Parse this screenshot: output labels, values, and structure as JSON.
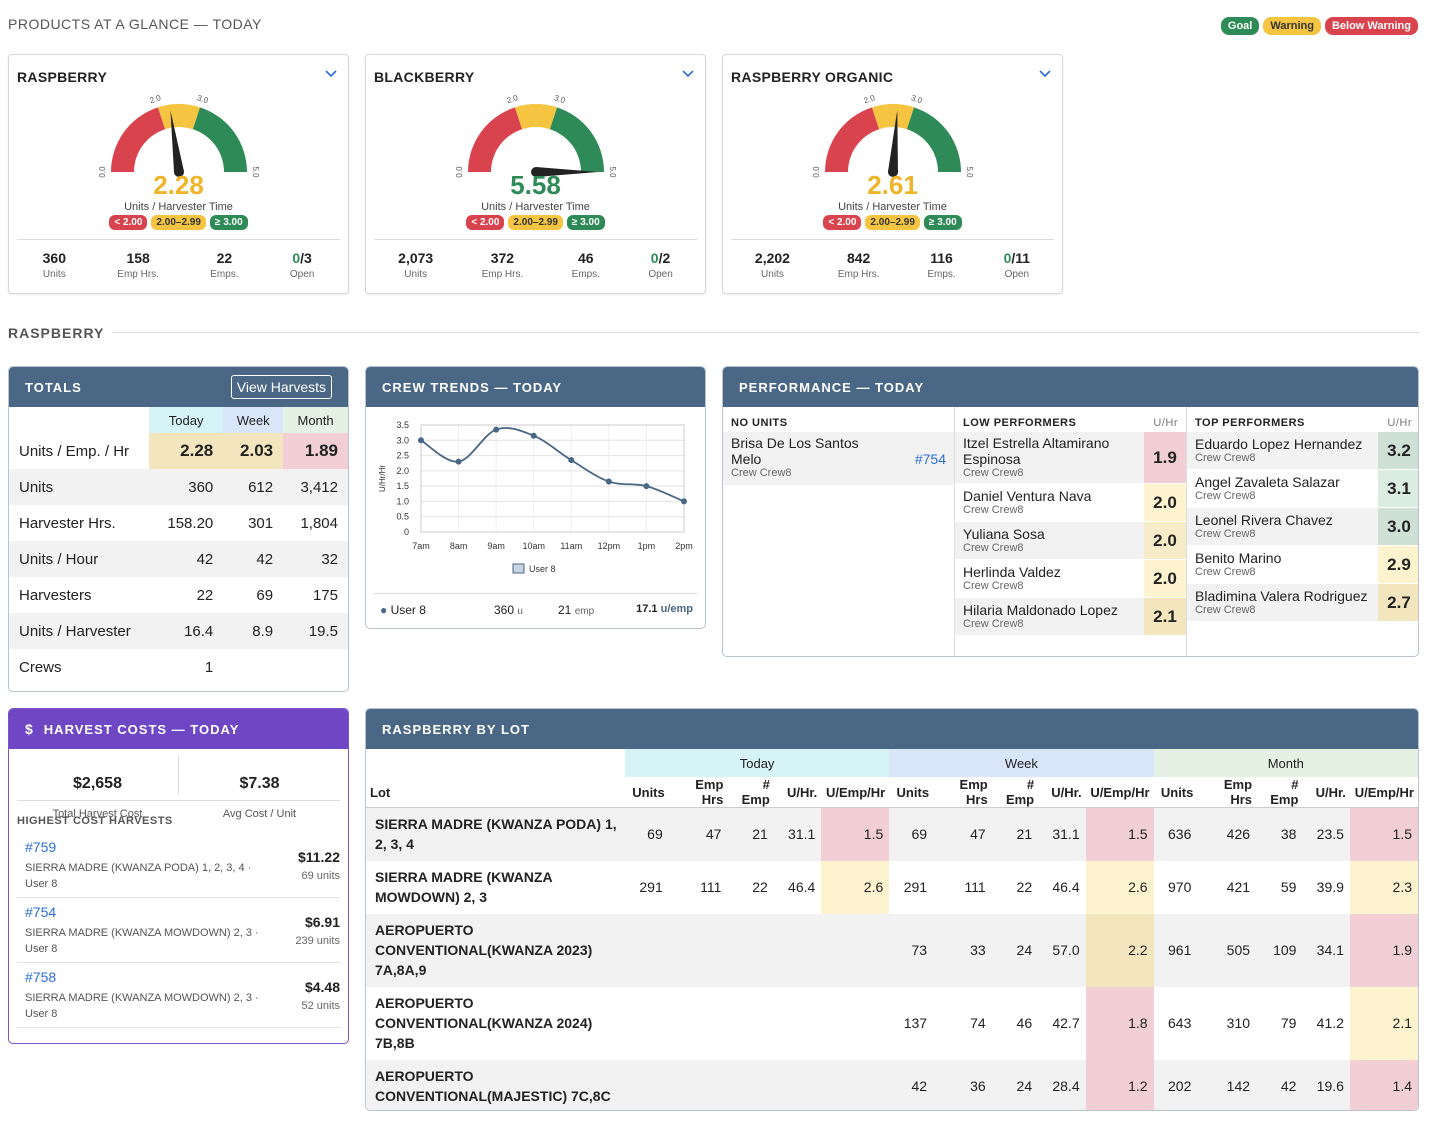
{
  "header": {
    "title": "PRODUCTS AT A GLANCE — TODAY",
    "legend": [
      "Goal",
      "Warning",
      "Below Warning"
    ]
  },
  "colors": {
    "goal": "#2e8b57",
    "warning": "#f5c542",
    "below": "#d9434e",
    "panel": "#4a6785",
    "costs": "#6f46c4"
  },
  "gauges": [
    {
      "title": "RASPBERRY",
      "value": 2.28,
      "value_label": "2.28",
      "value_color": "#f0b429",
      "subtitle": "Units / Harvester Time",
      "chips": [
        "< 2.00",
        "2.00–2.99",
        "≥ 3.00"
      ],
      "ticks": [
        "0.0",
        "2.0",
        "3.0",
        "5.0"
      ],
      "stats": [
        {
          "v": "360",
          "l": "Units"
        },
        {
          "v": "158",
          "l": "Emp Hrs."
        },
        {
          "v": "22",
          "l": "Emps."
        }
      ],
      "open": {
        "a": "0",
        "b": "/3",
        "l": "Open"
      }
    },
    {
      "title": "BLACKBERRY",
      "value": 5.58,
      "value_label": "5.58",
      "value_color": "#2e8b57",
      "subtitle": "Units / Harvester Time",
      "chips": [
        "< 2.00",
        "2.00–2.99",
        "≥ 3.00"
      ],
      "ticks": [
        "0.0",
        "2.0",
        "3.0",
        "5.0"
      ],
      "stats": [
        {
          "v": "2,073",
          "l": "Units"
        },
        {
          "v": "372",
          "l": "Emp Hrs."
        },
        {
          "v": "46",
          "l": "Emps."
        }
      ],
      "open": {
        "a": "0",
        "b": "/2",
        "l": "Open"
      }
    },
    {
      "title": "RASPBERRY ORGANIC",
      "value": 2.61,
      "value_label": "2.61",
      "value_color": "#f0b429",
      "subtitle": "Units / Harvester Time",
      "chips": [
        "< 2.00",
        "2.00–2.99",
        "≥ 3.00"
      ],
      "ticks": [
        "0.0",
        "2.0",
        "3.0",
        "5.0"
      ],
      "stats": [
        {
          "v": "2,202",
          "l": "Units"
        },
        {
          "v": "842",
          "l": "Emp Hrs."
        },
        {
          "v": "116",
          "l": "Emps."
        }
      ],
      "open": {
        "a": "0",
        "b": "/11",
        "l": "Open"
      }
    }
  ],
  "section": "RASPBERRY",
  "totals": {
    "title": "TOTALS",
    "button": "View Harvests",
    "cols": [
      "Today",
      "Week",
      "Month"
    ],
    "rows": [
      {
        "label": "Units / Emp. / Hr",
        "vals": [
          "2.28",
          "2.03",
          "1.89"
        ]
      },
      {
        "label": "Units",
        "vals": [
          "360",
          "612",
          "3,412"
        ]
      },
      {
        "label": "Harvester Hrs.",
        "vals": [
          "158.20",
          "301",
          "1,804"
        ]
      },
      {
        "label": "Units / Hour",
        "vals": [
          "42",
          "42",
          "32"
        ]
      },
      {
        "label": "Harvesters",
        "vals": [
          "22",
          "69",
          "175"
        ]
      },
      {
        "label": "Units / Harvester",
        "vals": [
          "16.4",
          "8.9",
          "19.5"
        ]
      },
      {
        "label": "Crews",
        "vals": [
          "1",
          "",
          ""
        ]
      }
    ]
  },
  "crew": {
    "title": "CREW TRENDS — TODAY",
    "ylabel": "U/Hr/Hr",
    "legend": "User 8",
    "foot": {
      "name": "User 8",
      "units": "360",
      "units_suffix": "u",
      "emp": "21",
      "emp_suffix": "emp",
      "rate": "17.1",
      "rate_suffix": "u/emp"
    },
    "chart_data": {
      "type": "line",
      "categories": [
        "7am",
        "8am",
        "9am",
        "10am",
        "11am",
        "12pm",
        "1pm",
        "2pm"
      ],
      "x": [
        0,
        1,
        2,
        3,
        4,
        5,
        6,
        7
      ],
      "series": [
        {
          "name": "User 8",
          "points": [
            [
              0,
              3.0
            ],
            [
              1,
              2.3
            ],
            [
              2,
              3.35
            ],
            [
              3,
              3.15
            ],
            [
              4,
              2.35
            ],
            [
              5,
              1.65
            ],
            [
              6,
              1.5
            ],
            [
              7,
              1.0
            ]
          ]
        }
      ],
      "ylim": [
        0,
        3.5
      ],
      "yticks": [
        "0",
        "0.5",
        "1.0",
        "1.5",
        "2.0",
        "2.5",
        "3.0",
        "3.5"
      ],
      "ylabel": "U/Hr/Hr"
    }
  },
  "performance": {
    "title": "PERFORMANCE — TODAY",
    "no_units": {
      "title": "NO UNITS",
      "rows": [
        {
          "name": "Brisa De Los Santos Melo",
          "crew": "Crew Crew8",
          "link": "#754"
        }
      ]
    },
    "low": {
      "title": "LOW PERFORMERS",
      "unit": "U/Hr",
      "rows": [
        {
          "name": "Itzel Estrella Altamirano Espinosa",
          "crew": "Crew Crew8",
          "v": "1.9",
          "c": "#f2cfd4"
        },
        {
          "name": "Daniel Ventura Nava",
          "crew": "Crew Crew8",
          "v": "2.0",
          "c": "#fdf3cf"
        },
        {
          "name": "Yuliana Sosa",
          "crew": "Crew Crew8",
          "v": "2.0",
          "c": "#f6ecc7"
        },
        {
          "name": "Herlinda Valdez",
          "crew": "Crew Crew8",
          "v": "2.0",
          "c": "#fdf3cf"
        },
        {
          "name": "Hilaria Maldonado Lopez",
          "crew": "Crew Crew8",
          "v": "2.1",
          "c": "#f3e6bf"
        }
      ]
    },
    "top": {
      "title": "TOP PERFORMERS",
      "unit": "U/Hr",
      "rows": [
        {
          "name": "Eduardo Lopez Hernandez",
          "crew": "Crew Crew8",
          "v": "3.2",
          "c": "#cfe0d4"
        },
        {
          "name": "Angel Zavaleta Salazar",
          "crew": "Crew Crew8",
          "v": "3.1",
          "c": "#dbece0"
        },
        {
          "name": "Leonel Rivera Chavez",
          "crew": "Crew Crew8",
          "v": "3.0",
          "c": "#cfe0d4"
        },
        {
          "name": "Benito Marino",
          "crew": "Crew Crew8",
          "v": "2.9",
          "c": "#fdf3cf"
        },
        {
          "name": "Bladimina Valera Rodriguez",
          "crew": "Crew Crew8",
          "v": "2.7",
          "c": "#f3e6bf"
        }
      ]
    }
  },
  "costs": {
    "title": "HARVEST COSTS — TODAY",
    "total": "$2,658",
    "total_label": "Total Harvest Cost",
    "avg": "$7.38",
    "avg_label": "Avg Cost / Unit",
    "subtitle": "HIGHEST COST HARVESTS",
    "items": [
      {
        "id": "#759",
        "desc": "SIERRA MADRE (KWANZA PODA) 1, 2, 3, 4 · User 8",
        "amt": "$11.22",
        "units": "69 units"
      },
      {
        "id": "#754",
        "desc": "SIERRA MADRE (KWANZA MOWDOWN) 2, 3 · User 8",
        "amt": "$6.91",
        "units": "239 units"
      },
      {
        "id": "#758",
        "desc": "SIERRA MADRE (KWANZA MOWDOWN) 2, 3 · User 8",
        "amt": "$4.48",
        "units": "52 units"
      }
    ]
  },
  "lots": {
    "title": "RASPBERRY BY LOT",
    "groups": [
      "Today",
      "Week",
      "Month"
    ],
    "cols": [
      "Lot",
      "Units",
      "Emp Hrs",
      "# Emp",
      "U/Hr.",
      "U/Emp/Hr"
    ],
    "rows": [
      {
        "lot": "SIERRA MADRE (KWANZA PODA) 1, 2, 3, 4",
        "today": [
          "69",
          "47",
          "21",
          "31.1",
          "1.5"
        ],
        "week": [
          "69",
          "47",
          "21",
          "31.1",
          "1.5"
        ],
        "month": [
          "636",
          "426",
          "38",
          "23.5",
          "1.5"
        ],
        "tc": "#f2cfd4",
        "wc": "#f2cfd4",
        "mc": "#f2cfd4"
      },
      {
        "lot": "SIERRA MADRE (KWANZA MOWDOWN) 2, 3",
        "today": [
          "291",
          "111",
          "22",
          "46.4",
          "2.6"
        ],
        "week": [
          "291",
          "111",
          "22",
          "46.4",
          "2.6"
        ],
        "month": [
          "970",
          "421",
          "59",
          "39.9",
          "2.3"
        ],
        "tc": "#fdf3cf",
        "wc": "#fdf3cf",
        "mc": "#fdf3cf"
      },
      {
        "lot": "AEROPUERTO CONVENTIONAL(KWANZA 2023) 7A,8A,9",
        "today": [
          "",
          "",
          "",
          "",
          ""
        ],
        "week": [
          "73",
          "33",
          "24",
          "57.0",
          "2.2"
        ],
        "month": [
          "961",
          "505",
          "109",
          "34.1",
          "1.9"
        ],
        "tc": "",
        "wc": "#f3e6bf",
        "mc": "#f2cfd4"
      },
      {
        "lot": "AEROPUERTO CONVENTIONAL(KWANZA 2024) 7B,8B",
        "today": [
          "",
          "",
          "",
          "",
          ""
        ],
        "week": [
          "137",
          "74",
          "46",
          "42.7",
          "1.8"
        ],
        "month": [
          "643",
          "310",
          "79",
          "41.2",
          "2.1"
        ],
        "tc": "",
        "wc": "#f2cfd4",
        "mc": "#fdf3cf"
      },
      {
        "lot": "AEROPUERTO CONVENTIONAL(MAJESTIC) 7C,8C",
        "today": [
          "",
          "",
          "",
          "",
          ""
        ],
        "week": [
          "42",
          "36",
          "24",
          "28.4",
          "1.2"
        ],
        "month": [
          "202",
          "142",
          "42",
          "19.6",
          "1.4"
        ],
        "tc": "",
        "wc": "#f2cfd4",
        "mc": "#f2cfd4"
      }
    ]
  }
}
